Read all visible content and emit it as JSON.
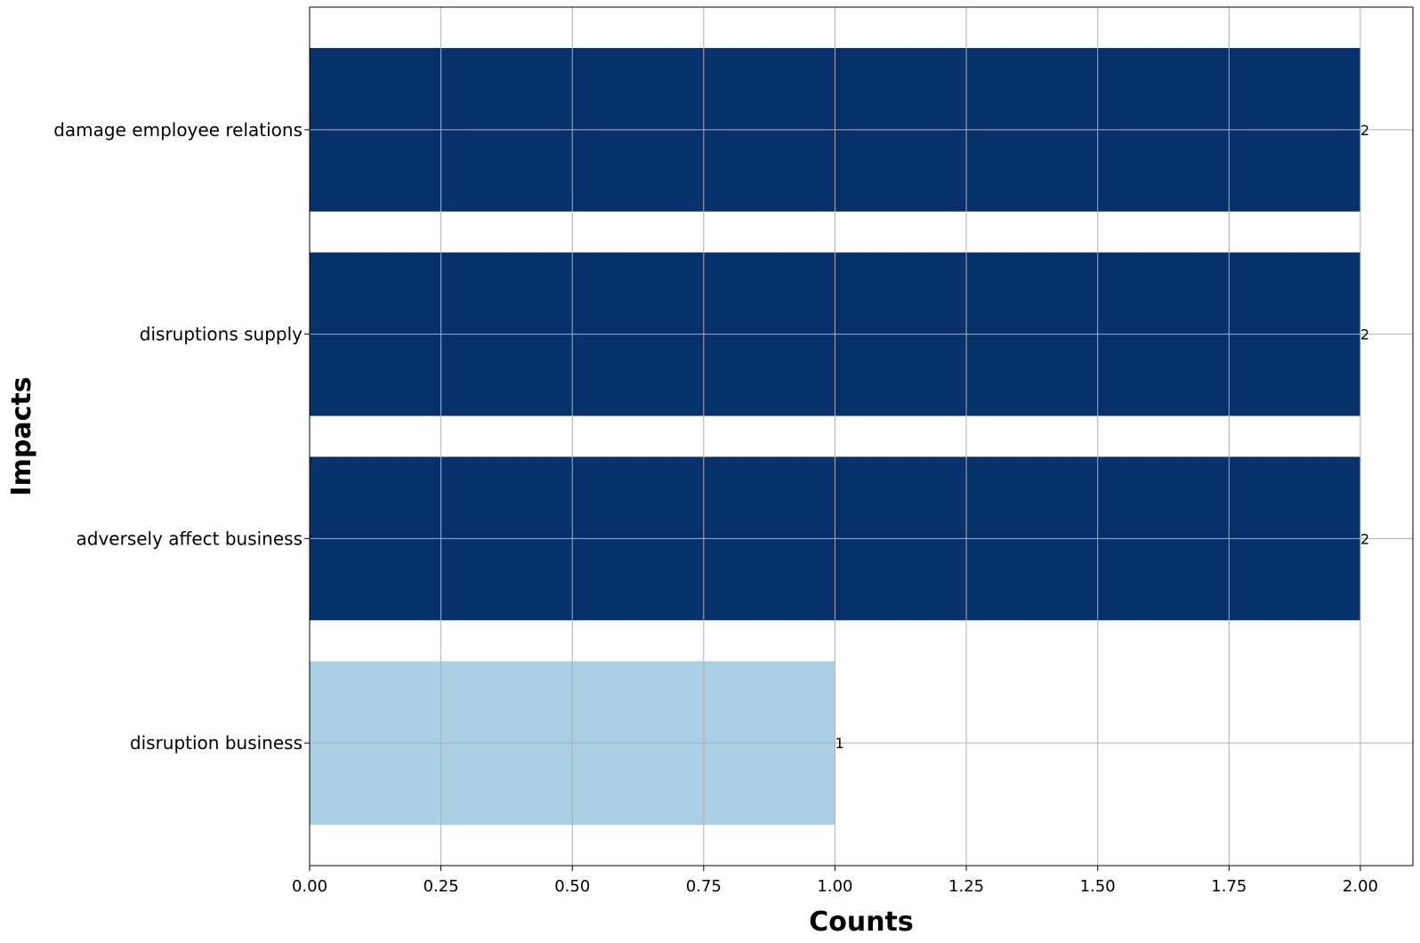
{
  "chart_data": {
    "type": "bar",
    "orientation": "horizontal",
    "xlabel": "Counts",
    "ylabel": "Impacts",
    "xlim": [
      0,
      2.1
    ],
    "xticks": [
      "0.00",
      "0.25",
      "0.50",
      "0.75",
      "1.00",
      "1.25",
      "1.50",
      "1.75",
      "2.00"
    ],
    "grid": true,
    "categories": [
      "damage employee relations",
      "disruptions supply",
      "adversely affect business",
      "disruption business"
    ],
    "values": [
      2,
      2,
      2,
      1
    ],
    "data_labels": [
      "2",
      "2",
      "2",
      "1"
    ],
    "colors": [
      "#08306b",
      "#08306b",
      "#08306b",
      "#abd0e6"
    ]
  }
}
